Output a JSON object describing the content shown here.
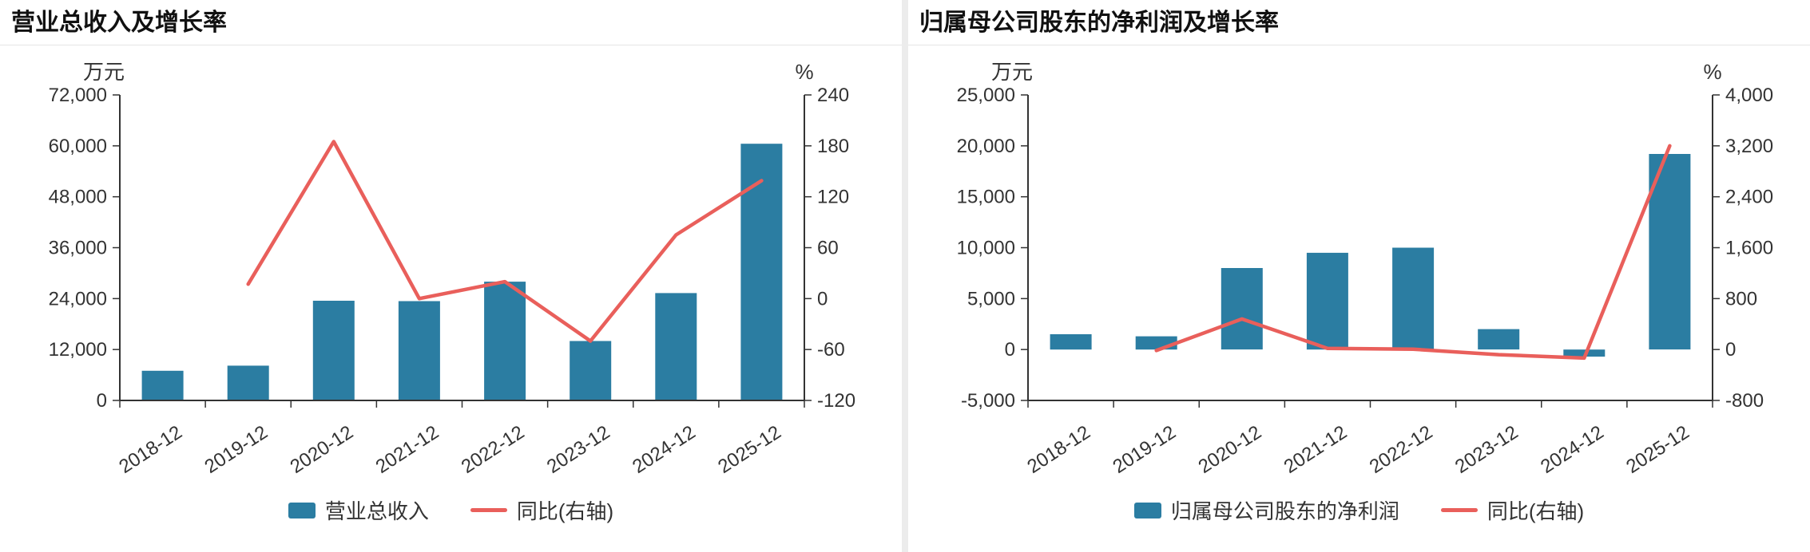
{
  "colors": {
    "bar": "#2b7da2",
    "line": "#e95f5b",
    "axis": "#333333",
    "text": "#333333",
    "divider": "#ececec"
  },
  "chart_data": [
    {
      "type": "bar",
      "title": "营业总收入及增长率",
      "unit_left": "万元",
      "unit_right": "%",
      "categories": [
        "2018-12",
        "2019-12",
        "2020-12",
        "2021-12",
        "2022-12",
        "2023-12",
        "2024-12",
        "2025-12"
      ],
      "series": [
        {
          "name": "营业总收入",
          "type": "bar",
          "axis": "left",
          "values": [
            7000,
            8200,
            23500,
            23400,
            28000,
            14000,
            25300,
            60500
          ]
        },
        {
          "name": "同比(右轴)",
          "type": "line",
          "axis": "right",
          "values": [
            null,
            17,
            185,
            0,
            20,
            -50,
            75,
            139
          ]
        }
      ],
      "y_left": {
        "min": 0,
        "max": 72000,
        "ticks": [
          0,
          12000,
          24000,
          36000,
          48000,
          60000,
          72000
        ]
      },
      "y_right": {
        "min": -120,
        "max": 240,
        "ticks": [
          -120,
          -60,
          0,
          60,
          120,
          180,
          240
        ]
      },
      "legend_position": "bottom",
      "grid": false
    },
    {
      "type": "bar",
      "title": "归属母公司股东的净利润及增长率",
      "unit_left": "万元",
      "unit_right": "%",
      "categories": [
        "2018-12",
        "2019-12",
        "2020-12",
        "2021-12",
        "2022-12",
        "2023-12",
        "2024-12",
        "2025-12"
      ],
      "series": [
        {
          "name": "归属母公司股东的净利润",
          "type": "bar",
          "axis": "left",
          "values": [
            1500,
            1300,
            8000,
            9500,
            10000,
            2000,
            -700,
            19200
          ]
        },
        {
          "name": "同比(右轴)",
          "type": "line",
          "axis": "right",
          "values": [
            null,
            -15,
            480,
            19,
            5,
            -80,
            -135,
            3200
          ]
        }
      ],
      "y_left": {
        "min": -5000,
        "max": 25000,
        "ticks": [
          -5000,
          0,
          5000,
          10000,
          15000,
          20000,
          25000
        ]
      },
      "y_right": {
        "min": -800,
        "max": 4000,
        "ticks": [
          -800,
          0,
          800,
          1600,
          2400,
          3200,
          4000
        ]
      },
      "legend_position": "bottom",
      "grid": false
    }
  ]
}
